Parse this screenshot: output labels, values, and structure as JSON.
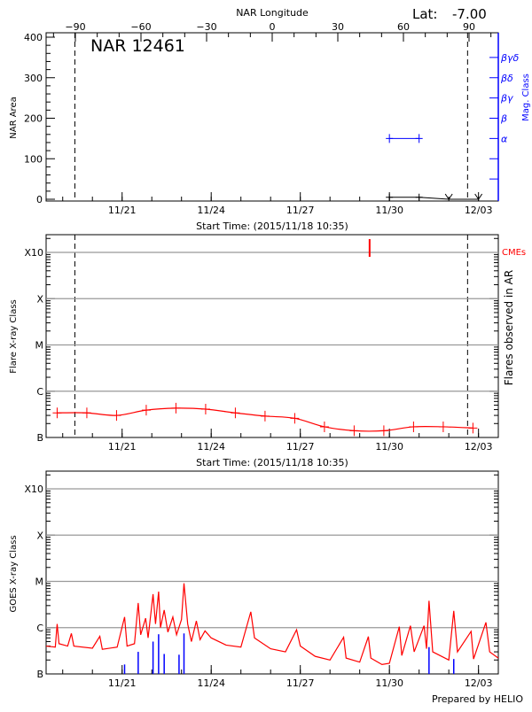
{
  "colors": {
    "axis": "#000000",
    "grid": "#999999",
    "flare": "#ff0000",
    "mag": "#0000ff",
    "cme": "#ff0000",
    "goes": "#ff0000",
    "goes_bars": "#0000ff"
  },
  "header": {
    "lat_label": "Lat:",
    "lat_value": "-7.00",
    "footer": "Prepared by HELIO"
  },
  "time_axis": {
    "range": [
      "2015-11-18T10:35",
      "2015-12-03T16:00"
    ],
    "major_ticks": [
      {
        "t": "2015-11-21T00:00",
        "label": "11/21"
      },
      {
        "t": "2015-11-24T00:00",
        "label": "11/24"
      },
      {
        "t": "2015-11-27T00:00",
        "label": "11/27"
      },
      {
        "t": "2015-11-30T00:00",
        "label": "11/30"
      },
      {
        "t": "2015-12-03T00:00",
        "label": "12/03"
      }
    ],
    "minor_tick_interval": "1 day",
    "title": "Start Time: (2015/11/18 10:35)"
  },
  "chart_data": [
    {
      "type": "line",
      "title": "NAR 12461",
      "xlabel": "Start Time: (2015/11/18 10:35)",
      "top_axis": {
        "label": "NAR Longitude",
        "ticks": [
          -90,
          -60,
          -30,
          0,
          30,
          60,
          90
        ],
        "tick_times": {
          "-90": "2015-11-19T09:50",
          "90": "2015-12-02T15:10"
        }
      },
      "ylabel": "NAR Area",
      "ylim": [
        0,
        400
      ],
      "yticks": [
        0,
        100,
        200,
        300,
        400
      ],
      "right_axis": {
        "label": "Mag. Class",
        "levels": [
          {
            "area": 50,
            "label": ""
          },
          {
            "area": 100,
            "label": ""
          },
          {
            "area": 150,
            "label": "α"
          },
          {
            "area": 200,
            "label": "β"
          },
          {
            "area": 250,
            "label": "βγ"
          },
          {
            "area": 300,
            "label": "βδ"
          },
          {
            "area": 350,
            "label": "βγδ"
          }
        ]
      },
      "limb_lines": [
        "2015-11-19T09:50",
        "2015-12-02T15:10"
      ],
      "area_series": [
        {
          "t": "2015-11-30T00:00",
          "v": 5
        },
        {
          "t": "2015-12-01T00:00",
          "v": 5
        },
        {
          "t": "2015-12-02T00:00",
          "v": 0,
          "missing": true
        },
        {
          "t": "2015-12-03T00:00",
          "v": 0,
          "missing": true
        }
      ],
      "mag_class_series": [
        {
          "t": "2015-11-30T00:00",
          "class": "α"
        },
        {
          "t": "2015-12-01T00:00",
          "class": "α"
        }
      ]
    },
    {
      "type": "line",
      "ylabel": "Flare X-ray Class",
      "right_label": "Flares observed in AR",
      "xlabel": "Start Time: (2015/11/18 10:35)",
      "yscale": "log",
      "ylim": [
        1e-07,
        0.001
      ],
      "ytick_labels": [
        {
          "v": 1e-07,
          "label": "B"
        },
        {
          "v": 1e-06,
          "label": "C"
        },
        {
          "v": 1e-05,
          "label": "M"
        },
        {
          "v": 0.0001,
          "label": "X"
        },
        {
          "v": 0.001,
          "label": "X10"
        }
      ],
      "grid": true,
      "limb_lines": [
        "2015-11-19T09:50",
        "2015-12-02T15:10"
      ],
      "series": [
        {
          "t": "2015-11-18T19:30",
          "v": 3.4e-07
        },
        {
          "t": "2015-11-19T19:30",
          "v": 3.4e-07
        },
        {
          "t": "2015-11-20T19:30",
          "v": 3e-07
        },
        {
          "t": "2015-11-21T19:30",
          "v": 3.9e-07
        },
        {
          "t": "2015-11-22T19:30",
          "v": 4.3e-07
        },
        {
          "t": "2015-11-23T19:30",
          "v": 4.1e-07
        },
        {
          "t": "2015-11-24T19:30",
          "v": 3.4e-07
        },
        {
          "t": "2015-11-25T19:30",
          "v": 2.9e-07
        },
        {
          "t": "2015-11-26T19:30",
          "v": 2.6e-07
        },
        {
          "t": "2015-11-27T19:30",
          "v": 1.7e-07
        },
        {
          "t": "2015-11-28T19:30",
          "v": 1.4e-07
        },
        {
          "t": "2015-11-29T19:30",
          "v": 1.4e-07
        },
        {
          "t": "2015-11-30T19:30",
          "v": 1.7e-07
        },
        {
          "t": "2015-12-01T19:30",
          "v": 1.7e-07
        },
        {
          "t": "2015-12-02T19:30",
          "v": 1.6e-07
        }
      ],
      "cme_label": "CMEs",
      "cmes": [
        "2015-11-29T08:00"
      ]
    },
    {
      "type": "line",
      "ylabel": "GOES X-ray Class",
      "yscale": "log",
      "ylim": [
        1e-07,
        0.001
      ],
      "ytick_labels": [
        {
          "v": 1e-07,
          "label": "B"
        },
        {
          "v": 1e-06,
          "label": "C"
        },
        {
          "v": 1e-05,
          "label": "M"
        },
        {
          "v": 0.0001,
          "label": "X"
        },
        {
          "v": 0.001,
          "label": "X10"
        }
      ],
      "grid": true,
      "series": [
        [
          "2015-11-18T10:35",
          4e-07
        ],
        [
          "2015-11-18T18:00",
          3.8e-07
        ],
        [
          "2015-11-18T19:30",
          1.2e-06
        ],
        [
          "2015-11-18T21:00",
          4.5e-07
        ],
        [
          "2015-11-19T04:00",
          4e-07
        ],
        [
          "2015-11-19T07:00",
          7.5e-07
        ],
        [
          "2015-11-19T09:00",
          4e-07
        ],
        [
          "2015-11-20T00:00",
          3.6e-07
        ],
        [
          "2015-11-20T06:00",
          6.5e-07
        ],
        [
          "2015-11-20T08:00",
          3.4e-07
        ],
        [
          "2015-11-20T20:00",
          3.8e-07
        ],
        [
          "2015-11-21T02:00",
          1.7e-06
        ],
        [
          "2015-11-21T04:00",
          4e-07
        ],
        [
          "2015-11-21T10:00",
          4.5e-07
        ],
        [
          "2015-11-21T13:00",
          3.4e-06
        ],
        [
          "2015-11-21T15:00",
          7e-07
        ],
        [
          "2015-11-21T19:00",
          1.6e-06
        ],
        [
          "2015-11-21T21:00",
          6e-07
        ],
        [
          "2015-11-22T01:00",
          5.3e-06
        ],
        [
          "2015-11-22T03:00",
          1.2e-06
        ],
        [
          "2015-11-22T05:30",
          6e-06
        ],
        [
          "2015-11-22T07:00",
          1e-06
        ],
        [
          "2015-11-22T10:00",
          2.4e-06
        ],
        [
          "2015-11-22T13:00",
          8e-07
        ],
        [
          "2015-11-22T17:00",
          1.7e-06
        ],
        [
          "2015-11-22T20:00",
          7e-07
        ],
        [
          "2015-11-23T00:00",
          1.5e-06
        ],
        [
          "2015-11-23T02:00",
          9.1e-06
        ],
        [
          "2015-11-23T05:00",
          1.2e-06
        ],
        [
          "2015-11-23T08:00",
          5e-07
        ],
        [
          "2015-11-23T12:00",
          1.4e-06
        ],
        [
          "2015-11-23T15:00",
          5.5e-07
        ],
        [
          "2015-11-23T19:00",
          8.5e-07
        ],
        [
          "2015-11-24T00:00",
          6e-07
        ],
        [
          "2015-11-24T12:00",
          4.2e-07
        ],
        [
          "2015-11-25T00:00",
          3.8e-07
        ],
        [
          "2015-11-25T08:00",
          2.2e-06
        ],
        [
          "2015-11-25T11:00",
          6e-07
        ],
        [
          "2015-11-26T00:00",
          3.5e-07
        ],
        [
          "2015-11-26T12:00",
          3e-07
        ],
        [
          "2015-11-26T21:00",
          9e-07
        ],
        [
          "2015-11-27T00:00",
          4e-07
        ],
        [
          "2015-11-27T12:00",
          2.4e-07
        ],
        [
          "2015-11-28T00:00",
          2e-07
        ],
        [
          "2015-11-28T11:00",
          6.2e-07
        ],
        [
          "2015-11-28T13:00",
          2.2e-07
        ],
        [
          "2015-11-29T00:00",
          1.8e-07
        ],
        [
          "2015-11-29T07:00",
          6.4e-07
        ],
        [
          "2015-11-29T09:00",
          2.2e-07
        ],
        [
          "2015-11-29T18:00",
          1.6e-07
        ],
        [
          "2015-11-30T00:00",
          1.7e-07
        ],
        [
          "2015-11-30T08:00",
          1.05e-06
        ],
        [
          "2015-11-30T10:00",
          2.5e-07
        ],
        [
          "2015-11-30T17:00",
          1.1e-06
        ],
        [
          "2015-11-30T20:00",
          3e-07
        ],
        [
          "2015-12-01T04:00",
          1.1e-06
        ],
        [
          "2015-12-01T06:00",
          3.5e-07
        ],
        [
          "2015-12-01T08:00",
          3.8e-06
        ],
        [
          "2015-12-01T11:00",
          3e-07
        ],
        [
          "2015-12-02T00:00",
          2e-07
        ],
        [
          "2015-12-02T04:00",
          2.3e-06
        ],
        [
          "2015-12-02T07:00",
          3e-07
        ],
        [
          "2015-12-02T18:00",
          8.3e-07
        ],
        [
          "2015-12-02T20:00",
          2.1e-07
        ],
        [
          "2015-12-03T06:00",
          1.3e-06
        ],
        [
          "2015-12-03T09:00",
          3e-07
        ],
        [
          "2015-12-03T16:00",
          2.2e-07
        ]
      ],
      "bars": [
        [
          "2015-11-21T02:00",
          1.6e-07
        ],
        [
          "2015-11-21T13:00",
          3e-07
        ],
        [
          "2015-11-22T01:00",
          5e-07
        ],
        [
          "2015-11-22T05:30",
          7.2e-07
        ],
        [
          "2015-11-22T10:00",
          2.7e-07
        ],
        [
          "2015-11-22T22:00",
          2.6e-07
        ],
        [
          "2015-11-23T02:00",
          7.5e-07
        ],
        [
          "2015-12-01T08:00",
          3.8e-07
        ],
        [
          "2015-12-02T04:00",
          2.1e-07
        ]
      ]
    }
  ]
}
